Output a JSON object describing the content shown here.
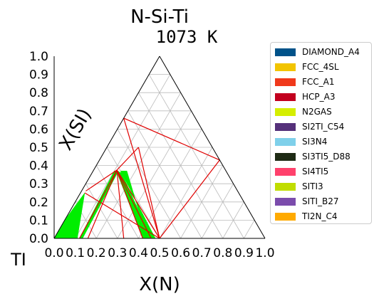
{
  "chart_data": {
    "type": "ternary-phase-diagram",
    "title": "N-Si-Ti",
    "subtitle": "1073 K",
    "xlabel": "X(N)",
    "ylabel": "X(SI)",
    "corner_label": "TI",
    "xlim": [
      0,
      1
    ],
    "ylim": [
      0,
      1
    ],
    "x_ticks": [
      "0.0",
      "0.1",
      "0.2",
      "0.3",
      "0.4",
      "0.5",
      "0.6",
      "0.7",
      "0.8",
      "0.9",
      "1.0"
    ],
    "y_ticks": [
      "0.0",
      "0.1",
      "0.2",
      "0.3",
      "0.4",
      "0.5",
      "0.6",
      "0.7",
      "0.8",
      "0.9",
      "1.0"
    ],
    "grid": true,
    "legend_position": "right",
    "legend": [
      {
        "name": "DIAMOND_A4",
        "color": "#005289"
      },
      {
        "name": "FCC_4SL",
        "color": "#f2c400"
      },
      {
        "name": "FCC_A1",
        "color": "#f0391b"
      },
      {
        "name": "HCP_A3",
        "color": "#c2001e"
      },
      {
        "name": "N2GAS",
        "color": "#d5ee00"
      },
      {
        "name": "SI2TI_C54",
        "color": "#55307a"
      },
      {
        "name": "SI3N4",
        "color": "#7fd0ea"
      },
      {
        "name": "SI3TI5_D88",
        "color": "#1e2a14"
      },
      {
        "name": "SI4TI5",
        "color": "#ff416c"
      },
      {
        "name": "SITI3",
        "color": "#c0dd00"
      },
      {
        "name": "SITI_B27",
        "color": "#7b4cac"
      },
      {
        "name": "TI2N_C4",
        "color": "#ffaa00"
      }
    ],
    "green_regions": [
      [
        [
          0.0,
          0.0
        ],
        [
          0.11,
          0.0
        ],
        [
          0.02,
          0.25
        ],
        [
          0.0,
          0.1
        ]
      ],
      [
        [
          0.13,
          0.37
        ],
        [
          0.16,
          0.37
        ],
        [
          0.44,
          0.0
        ],
        [
          0.48,
          0.0
        ]
      ],
      [
        [
          0.11,
          0.37
        ],
        [
          0.14,
          0.36
        ],
        [
          0.46,
          0.0
        ],
        [
          0.42,
          0.0
        ]
      ],
      [
        [
          0.1,
          0.37
        ],
        [
          0.12,
          0.37
        ],
        [
          0.135,
          0.0
        ],
        [
          0.12,
          0.0
        ]
      ]
    ],
    "tie_lines": [
      [
        [
          0.11,
          0.375
        ],
        [
          0.5,
          0.0
        ]
      ],
      [
        [
          0.11,
          0.375
        ],
        [
          0.46,
          0.0
        ]
      ],
      [
        [
          0.11,
          0.375
        ],
        [
          0.42,
          0.0
        ]
      ],
      [
        [
          0.11,
          0.375
        ],
        [
          0.33,
          0.0
        ]
      ],
      [
        [
          0.11,
          0.375
        ],
        [
          0.16,
          0.0
        ]
      ],
      [
        [
          0.11,
          0.375
        ],
        [
          0.12,
          0.0
        ]
      ],
      [
        [
          0.11,
          0.375
        ],
        [
          0.02,
          0.26
        ]
      ],
      [
        [
          0.15,
          0.5
        ],
        [
          0.5,
          0.0
        ]
      ],
      [
        [
          0.15,
          0.5
        ],
        [
          0.11,
          0.375
        ]
      ],
      [
        [
          0.0,
          0.66
        ],
        [
          0.5,
          0.0
        ]
      ],
      [
        [
          0.0,
          0.66
        ],
        [
          0.57,
          0.43
        ]
      ],
      [
        [
          0.5,
          0.0
        ],
        [
          0.57,
          0.43
        ]
      ],
      [
        [
          0.5,
          0.0
        ],
        [
          0.02,
          0.25
        ]
      ]
    ]
  }
}
